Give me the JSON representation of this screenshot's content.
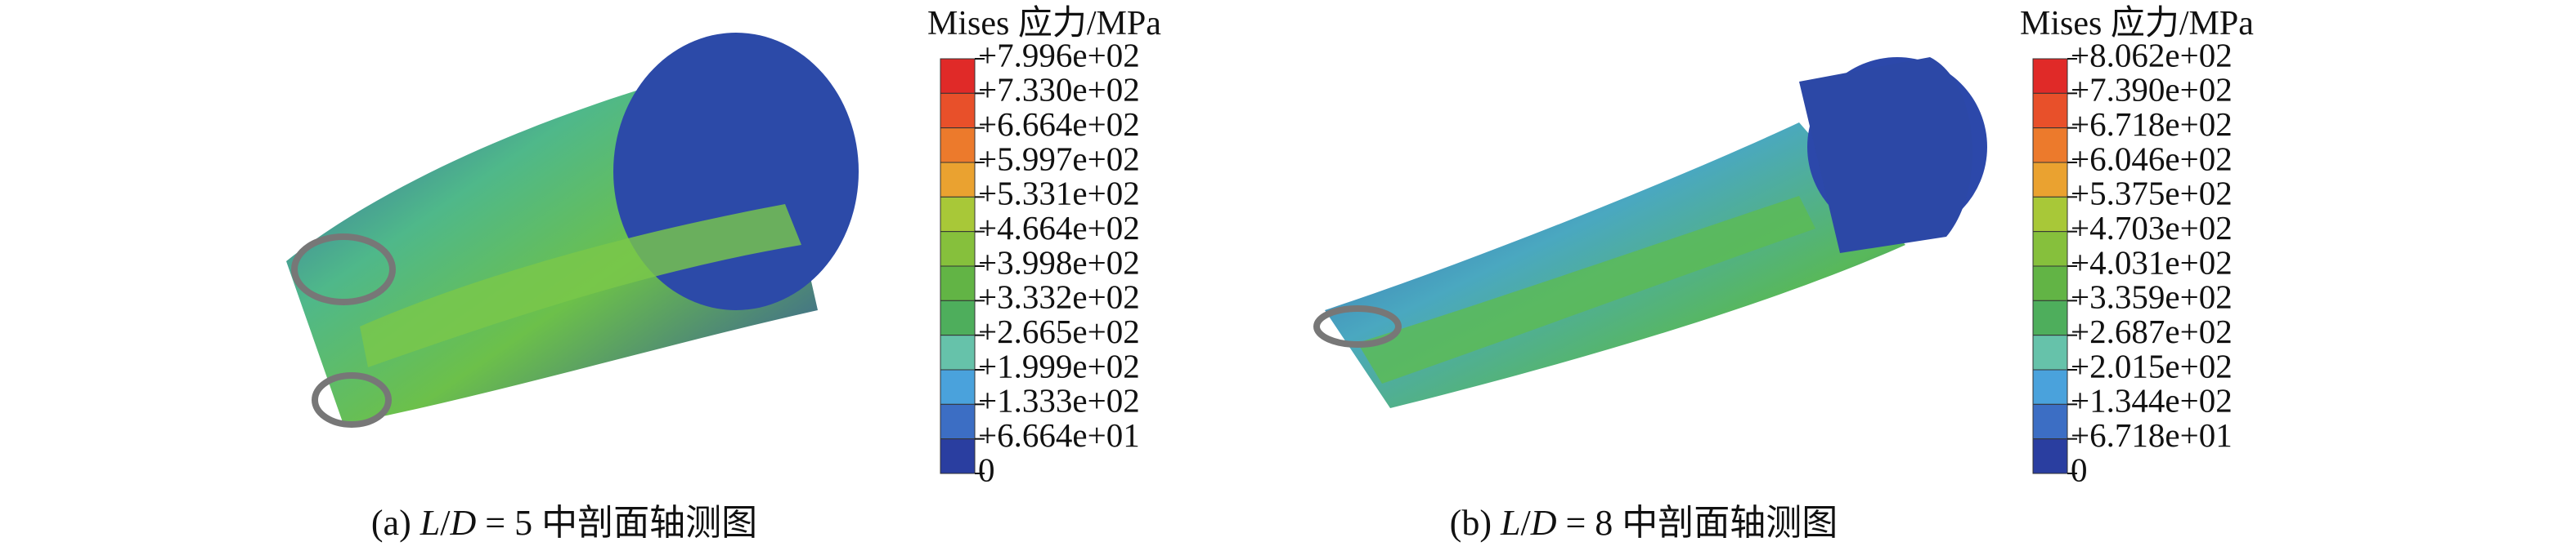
{
  "panels": [
    {
      "legend": {
        "title": "Mises 应力/MPa",
        "labels": [
          "+7.996e+02",
          "+7.330e+02",
          "+6.664e+02",
          "+5.997e+02",
          "+5.331e+02",
          "+4.664e+02",
          "+3.998e+02",
          "+3.332e+02",
          "+2.665e+02",
          "+1.999e+02",
          "+1.333e+02",
          "+6.664e+01",
          "0"
        ],
        "colors": [
          "#e02a28",
          "#e8502a",
          "#ec7a2c",
          "#eaa230",
          "#a8c838",
          "#86c03c",
          "#62b445",
          "#4eae5c",
          "#66c2aa",
          "#4aa2dc",
          "#3c6ec4",
          "#2a3ea0"
        ]
      },
      "caption": [
        "(a) ",
        "L",
        "/",
        "D",
        " = 5 中剖面轴测图"
      ]
    },
    {
      "legend": {
        "title": "Mises 应力/MPa",
        "labels": [
          "+8.062e+02",
          "+7.390e+02",
          "+6.718e+02",
          "+6.046e+02",
          "+5.375e+02",
          "+4.703e+02",
          "+4.031e+02",
          "+3.359e+02",
          "+2.687e+02",
          "+2.015e+02",
          "+1.344e+02",
          "+6.718e+01",
          "0"
        ],
        "colors": [
          "#e02a28",
          "#e8502a",
          "#ec7a2c",
          "#eaa230",
          "#a8c838",
          "#86c03c",
          "#62b445",
          "#4eae5c",
          "#66c2aa",
          "#4aa2dc",
          "#3c6ec4",
          "#2a3ea0"
        ]
      },
      "caption": [
        "(b) ",
        "L",
        "/",
        "D",
        " = 8 中剖面轴测图"
      ]
    }
  ]
}
